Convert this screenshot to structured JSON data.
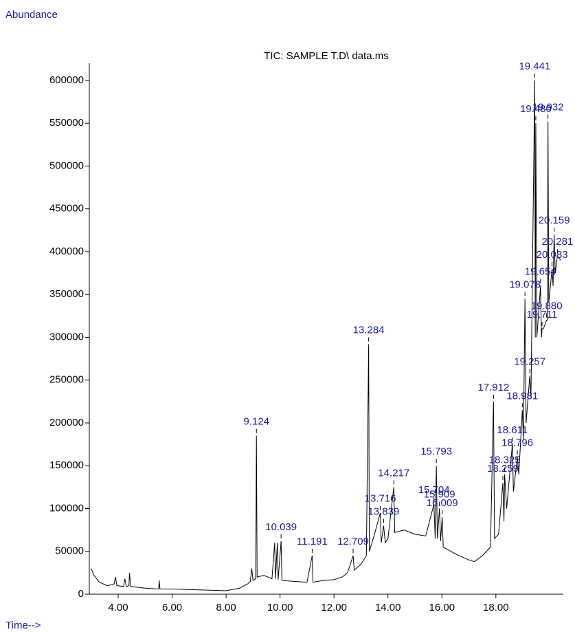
{
  "chart_data": {
    "type": "line",
    "title": "TIC: SAMPLE T.D\\ data.ms",
    "y_label": "Abundance",
    "x_label": "Time-->",
    "color": "#000000",
    "label_color": "#1a1aa0",
    "xlim": [
      2.93,
      20.5
    ],
    "ylim": [
      0,
      620000
    ],
    "xticks": [
      {
        "value": 4,
        "label": "4.00"
      },
      {
        "value": 6,
        "label": "6.00"
      },
      {
        "value": 8,
        "label": "8.00"
      },
      {
        "value": 10,
        "label": "10.00"
      },
      {
        "value": 12,
        "label": "12.00"
      },
      {
        "value": 14,
        "label": "14.00"
      },
      {
        "value": 16,
        "label": "16.00"
      },
      {
        "value": 18,
        "label": "18.00"
      }
    ],
    "yticks": [
      0,
      50000,
      100000,
      150000,
      200000,
      250000,
      300000,
      350000,
      400000,
      450000,
      500000,
      550000,
      600000
    ],
    "x": [
      3.0,
      3.1,
      3.3,
      3.6,
      3.85,
      3.9,
      3.95,
      4.2,
      4.25,
      4.3,
      4.4,
      4.42,
      4.46,
      5.0,
      5.5,
      5.52,
      5.55,
      6.0,
      7.0,
      8.0,
      8.5,
      8.8,
      8.9,
      8.95,
      9.0,
      9.1,
      9.124,
      9.15,
      9.4,
      9.7,
      9.8,
      9.83,
      9.9,
      9.93,
      10.039,
      10.07,
      10.5,
      11.0,
      11.191,
      11.22,
      11.6,
      12.0,
      12.3,
      12.5,
      12.709,
      12.75,
      13.0,
      13.2,
      13.284,
      13.31,
      13.5,
      13.716,
      13.75,
      13.839,
      13.9,
      14.0,
      14.217,
      14.25,
      14.6,
      15.0,
      15.4,
      15.704,
      15.75,
      15.793,
      15.83,
      15.909,
      15.95,
      16.009,
      16.05,
      16.5,
      17.0,
      17.2,
      17.5,
      17.8,
      17.912,
      17.95,
      18.1,
      18.259,
      18.3,
      18.325,
      18.4,
      18.611,
      18.65,
      18.796,
      18.85,
      18.981,
      19.02,
      19.078,
      19.12,
      19.257,
      19.3,
      19.441,
      19.46,
      19.48,
      19.52,
      19.654,
      19.69,
      19.711,
      19.76,
      19.88,
      19.91,
      19.932,
      19.96,
      20.083,
      20.12,
      20.159,
      20.2,
      20.281,
      20.4
    ],
    "values": [
      30000,
      22000,
      14000,
      10000,
      12000,
      20000,
      10000,
      9000,
      18000,
      9000,
      10000,
      25000,
      9000,
      7000,
      6000,
      16000,
      6000,
      6000,
      5000,
      4000,
      7000,
      12000,
      15000,
      30000,
      16000,
      18000,
      185000,
      20000,
      22000,
      18000,
      60000,
      18000,
      60000,
      17000,
      62000,
      16000,
      15000,
      14000,
      45000,
      14000,
      16000,
      17000,
      20000,
      25000,
      45000,
      28000,
      35000,
      45000,
      292000,
      50000,
      70000,
      95000,
      60000,
      80000,
      60000,
      65000,
      125000,
      72000,
      75000,
      70000,
      68000,
      105000,
      65000,
      150000,
      65000,
      100000,
      62000,
      90000,
      55000,
      47000,
      40000,
      38000,
      45000,
      55000,
      225000,
      65000,
      70000,
      130000,
      85000,
      140000,
      100000,
      175000,
      120000,
      160000,
      140000,
      215000,
      180000,
      345000,
      200000,
      255000,
      230000,
      600000,
      300000,
      550000,
      300000,
      360000,
      300000,
      310000,
      310000,
      320000,
      320000,
      552000,
      340000,
      380000,
      360000,
      420000,
      375000,
      395000,
      390000
    ],
    "peaks": [
      {
        "time": 9.124,
        "label": "9.124",
        "abundance": 185000
      },
      {
        "time": 10.039,
        "label": "10.039",
        "abundance": 62000
      },
      {
        "time": 11.191,
        "label": "11.191",
        "abundance": 45000
      },
      {
        "time": 12.709,
        "label": "12.709",
        "abundance": 45000
      },
      {
        "time": 13.284,
        "label": "13.284",
        "abundance": 292000
      },
      {
        "time": 13.716,
        "label": "13.716",
        "abundance": 95000
      },
      {
        "time": 13.839,
        "label": "13.839",
        "abundance": 80000
      },
      {
        "time": 14.217,
        "label": "14.217",
        "abundance": 125000
      },
      {
        "time": 15.704,
        "label": "15.704",
        "abundance": 105000
      },
      {
        "time": 15.793,
        "label": "15.793",
        "abundance": 150000
      },
      {
        "time": 15.909,
        "label": "15.909",
        "abundance": 100000
      },
      {
        "time": 16.009,
        "label": "16.009",
        "abundance": 90000
      },
      {
        "time": 17.912,
        "label": "17.912",
        "abundance": 225000
      },
      {
        "time": 18.259,
        "label": "18.259",
        "abundance": 130000
      },
      {
        "time": 18.325,
        "label": "18.325",
        "abundance": 140000
      },
      {
        "time": 18.611,
        "label": "18.611",
        "abundance": 175000
      },
      {
        "time": 18.796,
        "label": "18.796",
        "abundance": 160000
      },
      {
        "time": 18.981,
        "label": "18.981",
        "abundance": 215000
      },
      {
        "time": 19.078,
        "label": "19.078",
        "abundance": 345000
      },
      {
        "time": 19.257,
        "label": "19.257",
        "abundance": 255000
      },
      {
        "time": 19.441,
        "label": "19.441",
        "abundance": 600000
      },
      {
        "time": 19.48,
        "label": "19.480",
        "abundance": 550000
      },
      {
        "time": 19.654,
        "label": "19.654",
        "abundance": 360000
      },
      {
        "time": 19.711,
        "label": "19.711",
        "abundance": 310000
      },
      {
        "time": 19.88,
        "label": "19.880",
        "abundance": 320000
      },
      {
        "time": 19.932,
        "label": "19.932",
        "abundance": 552000
      },
      {
        "time": 20.083,
        "label": "20.083",
        "abundance": 380000
      },
      {
        "time": 20.159,
        "label": "20.159",
        "abundance": 420000
      },
      {
        "time": 20.281,
        "label": "20.281",
        "abundance": 395000
      }
    ]
  }
}
